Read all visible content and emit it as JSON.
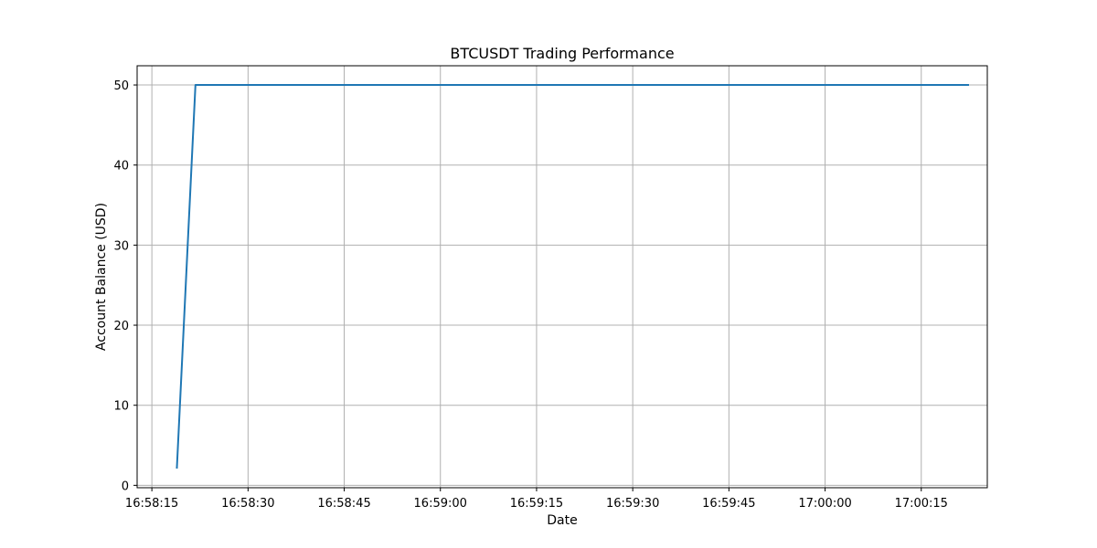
{
  "chart_data": {
    "type": "line",
    "title": "BTCUSDT Trading Performance",
    "xlabel": "Date",
    "ylabel": "Account Balance (USD)",
    "x_ticks": [
      {
        "time": "16:58:15",
        "label": "16:58:15"
      },
      {
        "time": "16:58:30",
        "label": "16:58:30"
      },
      {
        "time": "16:58:45",
        "label": "16:58:45"
      },
      {
        "time": "16:59:00",
        "label": "16:59:00"
      },
      {
        "time": "16:59:15",
        "label": "16:59:15"
      },
      {
        "time": "16:59:30",
        "label": "16:59:30"
      },
      {
        "time": "16:59:45",
        "label": "16:59:45"
      },
      {
        "time": "17:00:00",
        "label": "17:00:00"
      },
      {
        "time": "17:00:15",
        "label": "17:00:15"
      }
    ],
    "y_ticks": [
      {
        "value": 0,
        "label": "0"
      },
      {
        "value": 10,
        "label": "10"
      },
      {
        "value": 20,
        "label": "20"
      },
      {
        "value": 30,
        "label": "30"
      },
      {
        "value": 40,
        "label": "40"
      },
      {
        "value": 50,
        "label": "50"
      }
    ],
    "xlim": [
      "16:58:12.7",
      "17:00:25.3"
    ],
    "ylim": [
      -0.3,
      52.4
    ],
    "grid": true,
    "series": [
      {
        "color": "#1f77b4",
        "points": [
          {
            "x": "16:58:18.9",
            "y": 2.2
          },
          {
            "x": "16:58:21.8",
            "y": 50
          },
          {
            "x": "17:00:22.3",
            "y": 50
          }
        ]
      }
    ]
  }
}
